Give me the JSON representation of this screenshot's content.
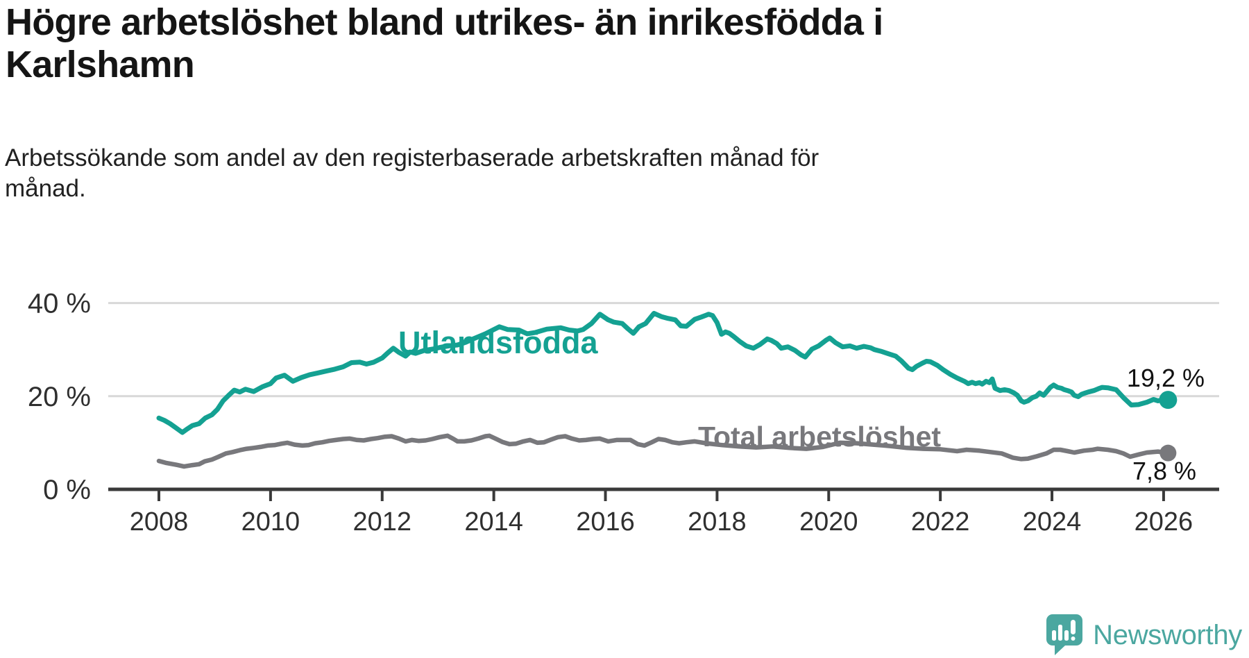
{
  "header": {
    "title_line1": "Högre arbetslöshet bland utrikes- än inrikesfödda i",
    "title_line2": "Karlshamn",
    "subtitle_line1": "Arbetssökande som andel av den registerbaserade arbetskraften månad för",
    "subtitle_line2": "månad."
  },
  "footer": {
    "brand": "Newsworthy",
    "brand_color": "#4BA7A0"
  },
  "chart_data": {
    "type": "line",
    "title": "Högre arbetslöshet bland utrikes- än inrikesfödda i Karlshamn",
    "subtitle": "Arbetssökande som andel av den registerbaserade arbetskraften månad för månad.",
    "xlabel": "",
    "ylabel": "",
    "x_unit": "year (monthly data)",
    "y_unit": "%",
    "xlim": [
      2007.1,
      2027.0
    ],
    "ylim": [
      0,
      43
    ],
    "grid": "horizontal",
    "legend_position": "inline-labels",
    "x_ticks": [
      2008,
      2010,
      2012,
      2014,
      2016,
      2018,
      2020,
      2022,
      2024,
      2026
    ],
    "x_tick_labels": [
      "2008",
      "2010",
      "2012",
      "2014",
      "2016",
      "2018",
      "2020",
      "2022",
      "2024",
      "2026"
    ],
    "yticks": [
      {
        "value": 0,
        "label": "0 %"
      },
      {
        "value": 20,
        "label": "20 %"
      },
      {
        "value": 40,
        "label": "40 %"
      }
    ],
    "colors": {
      "grid": "#D8D8D8",
      "axis": "#3A3A3A",
      "tick_text": "#2F2F2F",
      "end_label_text": "#111111"
    },
    "series": [
      {
        "name": "Utlandsfödda",
        "color": "#14A192",
        "end_label": "19,2 %",
        "end_value": 19.2,
        "points": [
          [
            2008.0,
            15.3
          ],
          [
            2008.1,
            14.8
          ],
          [
            2008.2,
            14.1
          ],
          [
            2008.33,
            13.0
          ],
          [
            2008.42,
            12.2
          ],
          [
            2008.5,
            12.9
          ],
          [
            2008.6,
            13.7
          ],
          [
            2008.72,
            14.1
          ],
          [
            2008.83,
            15.3
          ],
          [
            2008.95,
            16.0
          ],
          [
            2009.05,
            17.2
          ],
          [
            2009.15,
            19.0
          ],
          [
            2009.25,
            20.2
          ],
          [
            2009.35,
            21.3
          ],
          [
            2009.45,
            20.9
          ],
          [
            2009.55,
            21.5
          ],
          [
            2009.7,
            21.0
          ],
          [
            2009.85,
            22.0
          ],
          [
            2010.0,
            22.7
          ],
          [
            2010.1,
            23.9
          ],
          [
            2010.25,
            24.5
          ],
          [
            2010.4,
            23.2
          ],
          [
            2010.55,
            24.0
          ],
          [
            2010.7,
            24.6
          ],
          [
            2010.85,
            25.0
          ],
          [
            2011.0,
            25.4
          ],
          [
            2011.15,
            25.8
          ],
          [
            2011.3,
            26.3
          ],
          [
            2011.45,
            27.2
          ],
          [
            2011.6,
            27.3
          ],
          [
            2011.72,
            26.9
          ],
          [
            2011.85,
            27.3
          ],
          [
            2012.0,
            28.2
          ],
          [
            2012.1,
            29.3
          ],
          [
            2012.2,
            30.3
          ],
          [
            2012.3,
            29.4
          ],
          [
            2012.42,
            28.6
          ],
          [
            2012.5,
            29.5
          ],
          [
            2012.6,
            29.2
          ],
          [
            2012.75,
            29.8
          ],
          [
            2012.9,
            30.1
          ],
          [
            2013.05,
            30.5
          ],
          [
            2013.2,
            30.8
          ],
          [
            2013.35,
            31.0
          ],
          [
            2013.5,
            31.6
          ],
          [
            2013.65,
            32.4
          ],
          [
            2013.85,
            33.4
          ],
          [
            2014.1,
            34.9
          ],
          [
            2014.25,
            34.3
          ],
          [
            2014.45,
            34.2
          ],
          [
            2014.6,
            33.4
          ],
          [
            2014.75,
            33.7
          ],
          [
            2014.95,
            34.4
          ],
          [
            2015.2,
            34.7
          ],
          [
            2015.35,
            34.2
          ],
          [
            2015.5,
            34.0
          ],
          [
            2015.6,
            34.3
          ],
          [
            2015.75,
            35.6
          ],
          [
            2015.9,
            37.6
          ],
          [
            2016.05,
            36.4
          ],
          [
            2016.15,
            35.9
          ],
          [
            2016.3,
            35.6
          ],
          [
            2016.4,
            34.5
          ],
          [
            2016.5,
            33.5
          ],
          [
            2016.6,
            34.9
          ],
          [
            2016.72,
            35.6
          ],
          [
            2016.87,
            37.8
          ],
          [
            2017.0,
            37.1
          ],
          [
            2017.12,
            36.7
          ],
          [
            2017.25,
            36.4
          ],
          [
            2017.35,
            35.1
          ],
          [
            2017.45,
            35.0
          ],
          [
            2017.6,
            36.5
          ],
          [
            2017.72,
            37.0
          ],
          [
            2017.85,
            37.6
          ],
          [
            2017.92,
            37.3
          ],
          [
            2018.0,
            35.8
          ],
          [
            2018.08,
            33.3
          ],
          [
            2018.15,
            33.8
          ],
          [
            2018.22,
            33.5
          ],
          [
            2018.3,
            32.8
          ],
          [
            2018.4,
            31.8
          ],
          [
            2018.52,
            30.8
          ],
          [
            2018.65,
            30.3
          ],
          [
            2018.77,
            31.1
          ],
          [
            2018.9,
            32.3
          ],
          [
            2018.97,
            32.0
          ],
          [
            2019.07,
            31.3
          ],
          [
            2019.15,
            30.3
          ],
          [
            2019.27,
            30.6
          ],
          [
            2019.4,
            29.8
          ],
          [
            2019.5,
            28.9
          ],
          [
            2019.58,
            28.4
          ],
          [
            2019.7,
            30.1
          ],
          [
            2019.82,
            30.8
          ],
          [
            2019.95,
            32.0
          ],
          [
            2020.02,
            32.5
          ],
          [
            2020.12,
            31.5
          ],
          [
            2020.25,
            30.6
          ],
          [
            2020.38,
            30.8
          ],
          [
            2020.5,
            30.3
          ],
          [
            2020.63,
            30.7
          ],
          [
            2020.75,
            30.4
          ],
          [
            2020.82,
            30.0
          ],
          [
            2020.95,
            29.6
          ],
          [
            2021.07,
            29.1
          ],
          [
            2021.2,
            28.6
          ],
          [
            2021.3,
            27.6
          ],
          [
            2021.43,
            26.0
          ],
          [
            2021.5,
            25.7
          ],
          [
            2021.57,
            26.4
          ],
          [
            2021.68,
            27.1
          ],
          [
            2021.75,
            27.5
          ],
          [
            2021.82,
            27.4
          ],
          [
            2021.95,
            26.6
          ],
          [
            2022.05,
            25.7
          ],
          [
            2022.18,
            24.7
          ],
          [
            2022.3,
            23.9
          ],
          [
            2022.43,
            23.2
          ],
          [
            2022.5,
            22.7
          ],
          [
            2022.57,
            23.0
          ],
          [
            2022.63,
            22.7
          ],
          [
            2022.7,
            22.9
          ],
          [
            2022.75,
            22.6
          ],
          [
            2022.82,
            23.2
          ],
          [
            2022.88,
            22.9
          ],
          [
            2022.93,
            23.7
          ],
          [
            2022.98,
            21.7
          ],
          [
            2023.07,
            21.2
          ],
          [
            2023.15,
            21.4
          ],
          [
            2023.23,
            21.2
          ],
          [
            2023.32,
            20.7
          ],
          [
            2023.38,
            20.2
          ],
          [
            2023.45,
            19.0
          ],
          [
            2023.5,
            18.7
          ],
          [
            2023.57,
            19.0
          ],
          [
            2023.65,
            19.7
          ],
          [
            2023.72,
            20.0
          ],
          [
            2023.78,
            20.7
          ],
          [
            2023.85,
            20.2
          ],
          [
            2023.9,
            20.9
          ],
          [
            2023.97,
            21.9
          ],
          [
            2024.03,
            22.4
          ],
          [
            2024.1,
            21.9
          ],
          [
            2024.17,
            21.7
          ],
          [
            2024.22,
            21.4
          ],
          [
            2024.28,
            21.2
          ],
          [
            2024.35,
            20.9
          ],
          [
            2024.4,
            20.2
          ],
          [
            2024.47,
            19.9
          ],
          [
            2024.53,
            20.4
          ],
          [
            2024.6,
            20.7
          ],
          [
            2024.65,
            20.9
          ],
          [
            2024.75,
            21.2
          ],
          [
            2024.83,
            21.6
          ],
          [
            2024.9,
            21.9
          ],
          [
            2025.0,
            21.8
          ],
          [
            2025.15,
            21.4
          ],
          [
            2025.28,
            19.7
          ],
          [
            2025.42,
            18.1
          ],
          [
            2025.55,
            18.2
          ],
          [
            2025.7,
            18.7
          ],
          [
            2025.82,
            19.3
          ],
          [
            2025.9,
            19.0
          ],
          [
            2026.0,
            19.3
          ],
          [
            2026.08,
            19.2
          ]
        ]
      },
      {
        "name": "Total arbetslöshet",
        "color": "#78787C",
        "end_label": "7,8 %",
        "end_value": 7.8,
        "points": [
          [
            2008.0,
            6.1
          ],
          [
            2008.12,
            5.7
          ],
          [
            2008.3,
            5.3
          ],
          [
            2008.45,
            4.9
          ],
          [
            2008.6,
            5.2
          ],
          [
            2008.72,
            5.4
          ],
          [
            2008.82,
            6.0
          ],
          [
            2008.95,
            6.4
          ],
          [
            2009.07,
            7.0
          ],
          [
            2009.2,
            7.7
          ],
          [
            2009.32,
            8.0
          ],
          [
            2009.45,
            8.4
          ],
          [
            2009.57,
            8.7
          ],
          [
            2009.7,
            8.9
          ],
          [
            2009.82,
            9.1
          ],
          [
            2009.95,
            9.4
          ],
          [
            2010.07,
            9.5
          ],
          [
            2010.2,
            9.8
          ],
          [
            2010.3,
            10.0
          ],
          [
            2010.43,
            9.6
          ],
          [
            2010.57,
            9.4
          ],
          [
            2010.68,
            9.5
          ],
          [
            2010.8,
            9.9
          ],
          [
            2010.93,
            10.1
          ],
          [
            2011.05,
            10.4
          ],
          [
            2011.17,
            10.6
          ],
          [
            2011.3,
            10.8
          ],
          [
            2011.42,
            10.9
          ],
          [
            2011.55,
            10.6
          ],
          [
            2011.67,
            10.5
          ],
          [
            2011.8,
            10.8
          ],
          [
            2011.92,
            11.0
          ],
          [
            2012.05,
            11.3
          ],
          [
            2012.17,
            11.4
          ],
          [
            2012.3,
            10.9
          ],
          [
            2012.42,
            10.3
          ],
          [
            2012.53,
            10.6
          ],
          [
            2012.65,
            10.4
          ],
          [
            2012.78,
            10.5
          ],
          [
            2012.9,
            10.8
          ],
          [
            2013.03,
            11.2
          ],
          [
            2013.17,
            11.5
          ],
          [
            2013.28,
            10.8
          ],
          [
            2013.35,
            10.3
          ],
          [
            2013.47,
            10.3
          ],
          [
            2013.6,
            10.5
          ],
          [
            2013.72,
            10.9
          ],
          [
            2013.85,
            11.4
          ],
          [
            2013.92,
            11.5
          ],
          [
            2014.03,
            10.9
          ],
          [
            2014.15,
            10.2
          ],
          [
            2014.28,
            9.7
          ],
          [
            2014.4,
            9.8
          ],
          [
            2014.53,
            10.3
          ],
          [
            2014.65,
            10.6
          ],
          [
            2014.78,
            10.0
          ],
          [
            2014.9,
            10.1
          ],
          [
            2015.03,
            10.7
          ],
          [
            2015.15,
            11.2
          ],
          [
            2015.28,
            11.4
          ],
          [
            2015.4,
            10.9
          ],
          [
            2015.53,
            10.5
          ],
          [
            2015.65,
            10.6
          ],
          [
            2015.78,
            10.8
          ],
          [
            2015.9,
            10.9
          ],
          [
            2016.05,
            10.3
          ],
          [
            2016.2,
            10.6
          ],
          [
            2016.45,
            10.6
          ],
          [
            2016.58,
            9.7
          ],
          [
            2016.7,
            9.4
          ],
          [
            2016.83,
            10.1
          ],
          [
            2016.95,
            10.8
          ],
          [
            2017.07,
            10.6
          ],
          [
            2017.2,
            10.1
          ],
          [
            2017.32,
            9.9
          ],
          [
            2017.45,
            10.1
          ],
          [
            2017.6,
            10.3
          ],
          [
            2017.8,
            9.9
          ],
          [
            2018.1,
            9.5
          ],
          [
            2018.4,
            9.2
          ],
          [
            2018.7,
            9.0
          ],
          [
            2019.0,
            9.2
          ],
          [
            2019.3,
            8.9
          ],
          [
            2019.6,
            8.7
          ],
          [
            2019.9,
            9.1
          ],
          [
            2020.2,
            10.0
          ],
          [
            2020.5,
            9.9
          ],
          [
            2020.8,
            9.6
          ],
          [
            2021.1,
            9.3
          ],
          [
            2021.4,
            8.9
          ],
          [
            2021.7,
            8.7
          ],
          [
            2022.0,
            8.6
          ],
          [
            2022.3,
            8.2
          ],
          [
            2022.47,
            8.5
          ],
          [
            2022.7,
            8.3
          ],
          [
            2022.9,
            8.0
          ],
          [
            2023.1,
            7.7
          ],
          [
            2023.3,
            6.8
          ],
          [
            2023.45,
            6.5
          ],
          [
            2023.57,
            6.6
          ],
          [
            2023.73,
            7.1
          ],
          [
            2023.9,
            7.7
          ],
          [
            2024.03,
            8.5
          ],
          [
            2024.15,
            8.5
          ],
          [
            2024.28,
            8.2
          ],
          [
            2024.4,
            7.9
          ],
          [
            2024.57,
            8.3
          ],
          [
            2024.73,
            8.5
          ],
          [
            2024.82,
            8.7
          ],
          [
            2025.0,
            8.5
          ],
          [
            2025.15,
            8.2
          ],
          [
            2025.28,
            7.7
          ],
          [
            2025.4,
            7.0
          ],
          [
            2025.56,
            7.5
          ],
          [
            2025.7,
            7.9
          ],
          [
            2025.9,
            8.1
          ],
          [
            2026.08,
            7.8
          ]
        ]
      }
    ]
  }
}
